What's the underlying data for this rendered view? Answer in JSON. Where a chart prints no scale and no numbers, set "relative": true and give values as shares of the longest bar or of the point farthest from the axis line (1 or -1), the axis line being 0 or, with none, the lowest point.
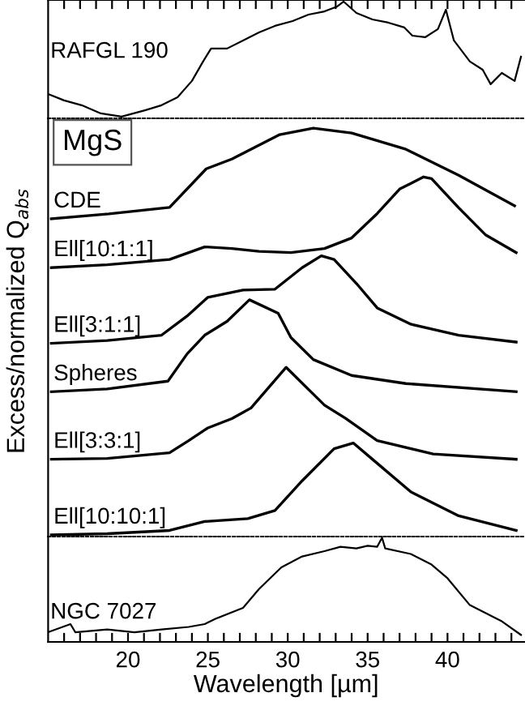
{
  "chart_data": [
    {
      "type": "line",
      "relative": true,
      "xlim": [
        15,
        44.8
      ],
      "xticks": [
        {
          "value": 16,
          "label": null
        },
        {
          "value": 17,
          "label": null
        },
        {
          "value": 18,
          "label": null
        },
        {
          "value": 19,
          "label": null
        },
        {
          "value": 20,
          "label": null
        },
        {
          "value": 21,
          "label": null
        },
        {
          "value": 22,
          "label": null
        },
        {
          "value": 23,
          "label": null
        },
        {
          "value": 24,
          "label": null
        },
        {
          "value": 25,
          "label": null
        },
        {
          "value": 26,
          "label": null
        },
        {
          "value": 27,
          "label": null
        },
        {
          "value": 28,
          "label": null
        },
        {
          "value": 29,
          "label": null
        },
        {
          "value": 30,
          "label": null
        },
        {
          "value": 31,
          "label": null
        },
        {
          "value": 32,
          "label": null
        },
        {
          "value": 33,
          "label": null
        },
        {
          "value": 34,
          "label": null
        },
        {
          "value": 35,
          "label": null
        },
        {
          "value": 36,
          "label": null
        },
        {
          "value": 37,
          "label": null
        },
        {
          "value": 38,
          "label": null
        },
        {
          "value": 39,
          "label": null
        },
        {
          "value": 40,
          "label": null
        },
        {
          "value": 41,
          "label": null
        },
        {
          "value": 42,
          "label": null
        },
        {
          "value": 43,
          "label": null
        },
        {
          "value": 44,
          "label": null
        }
      ],
      "tick_labels": false,
      "legend": false,
      "series": [
        {
          "name": "RAFGL 190",
          "color": "#000000",
          "x": [
            15.0,
            16.0,
            17.1,
            18.3,
            19.6,
            21.1,
            22.1,
            23.1,
            24.0,
            24.7,
            25.2,
            26.2,
            27.2,
            28.2,
            29.2,
            30.3,
            31.3,
            32.3,
            33.1,
            33.5,
            34.3,
            35.3,
            36.3,
            37.3,
            37.8,
            38.6,
            39.4,
            39.9,
            40.4,
            41.4,
            42.2,
            42.7,
            43.4,
            44.2,
            44.6
          ],
          "values": [
            0.197,
            0.141,
            0.099,
            0.028,
            0,
            0.056,
            0.099,
            0.169,
            0.31,
            0.479,
            0.592,
            0.592,
            0.662,
            0.732,
            0.789,
            0.831,
            0.887,
            0.915,
            0.958,
            1.0,
            0.901,
            0.845,
            0.817,
            0.775,
            0.704,
            0.69,
            0.761,
            0.93,
            0.662,
            0.479,
            0.408,
            0.282,
            0.38,
            0.31,
            0.521
          ]
        }
      ]
    },
    {
      "type": "line",
      "relative": true,
      "xlim": [
        15,
        44.8
      ],
      "tick_labels": false,
      "legend": false,
      "ylabel": "Excess/normalized Q$_{abs}$",
      "annotations": [
        "MgS"
      ],
      "series": [
        {
          "name": "CDE",
          "color": "#000000",
          "x": [
            15.2,
            18.8,
            22.6,
            24.9,
            26.5,
            29.5,
            31.6,
            34.0,
            37.4,
            40.7,
            44.2
          ],
          "values": [
            0.777,
            0.789,
            0.805,
            0.9,
            0.924,
            0.984,
            1.0,
            0.988,
            0.948,
            0.884,
            0.809
          ]
        },
        {
          "name": "Ell[10:1:1]",
          "color": "#000000",
          "x": [
            15.2,
            18.7,
            22.6,
            24.8,
            26.5,
            28.2,
            30.2,
            32.3,
            34.0,
            35.6,
            37.0,
            38.5,
            39.0,
            40.7,
            42.4,
            44.3
          ],
          "values": [
            0.657,
            0.664,
            0.677,
            0.708,
            0.704,
            0.697,
            0.694,
            0.704,
            0.73,
            0.79,
            0.85,
            0.88,
            0.876,
            0.804,
            0.737,
            0.694
          ]
        },
        {
          "name": "Ell[3:1:1]",
          "color": "#000000",
          "x": [
            15.2,
            18.7,
            22.1,
            23.7,
            25.0,
            27.2,
            29.2,
            30.9,
            32.1,
            32.9,
            34.3,
            35.6,
            37.7,
            40.7,
            44.3
          ],
          "values": [
            0.471,
            0.478,
            0.491,
            0.538,
            0.584,
            0.602,
            0.604,
            0.657,
            0.686,
            0.677,
            0.618,
            0.558,
            0.518,
            0.491,
            0.474
          ]
        },
        {
          "name": "Spheres",
          "color": "#000000",
          "x": [
            15.2,
            18.7,
            22.5,
            23.7,
            24.8,
            26.2,
            27.6,
            29.4,
            30.2,
            31.6,
            34.0,
            37.4,
            44.3
          ],
          "values": [
            0.352,
            0.359,
            0.378,
            0.445,
            0.491,
            0.525,
            0.578,
            0.545,
            0.485,
            0.431,
            0.392,
            0.372,
            0.352
          ]
        },
        {
          "name": "Ell[3:3:1]",
          "color": "#000000",
          "x": [
            15.2,
            18.7,
            22.6,
            23.8,
            25.0,
            26.5,
            27.7,
            29.9,
            32.3,
            33.6,
            35.6,
            39.1,
            44.3
          ],
          "values": [
            0.186,
            0.188,
            0.202,
            0.232,
            0.263,
            0.286,
            0.312,
            0.412,
            0.319,
            0.287,
            0.232,
            0.199,
            0.186
          ]
        },
        {
          "name": "Ell[10:10:1]",
          "color": "#000000",
          "x": [
            15.2,
            18.7,
            22.6,
            24.8,
            27.5,
            29.2,
            30.9,
            32.9,
            34.1,
            35.3,
            37.7,
            40.7,
            44.3
          ],
          "values": [
            0,
            0.003,
            0.011,
            0.033,
            0.04,
            0.06,
            0.133,
            0.212,
            0.226,
            0.186,
            0.106,
            0.047,
            0.011
          ]
        }
      ]
    },
    {
      "type": "line",
      "relative": true,
      "xlim": [
        15,
        44.8
      ],
      "xticks": [
        {
          "value": 16,
          "label": null
        },
        {
          "value": 17,
          "label": null
        },
        {
          "value": 18,
          "label": null
        },
        {
          "value": 19,
          "label": null
        },
        20,
        {
          "value": 21,
          "label": null
        },
        {
          "value": 22,
          "label": null
        },
        {
          "value": 23,
          "label": null
        },
        {
          "value": 24,
          "label": null
        },
        25,
        {
          "value": 26,
          "label": null
        },
        {
          "value": 27,
          "label": null
        },
        {
          "value": 28,
          "label": null
        },
        {
          "value": 29,
          "label": null
        },
        30,
        {
          "value": 31,
          "label": null
        },
        {
          "value": 32,
          "label": null
        },
        {
          "value": 33,
          "label": null
        },
        {
          "value": 34,
          "label": null
        },
        35,
        {
          "value": 36,
          "label": null
        },
        {
          "value": 37,
          "label": null
        },
        {
          "value": 38,
          "label": null
        },
        {
          "value": 39,
          "label": null
        },
        40,
        {
          "value": 41,
          "label": null
        },
        {
          "value": 42,
          "label": null
        },
        {
          "value": 43,
          "label": null
        },
        {
          "value": 44,
          "label": null
        }
      ],
      "tick_labels": "x",
      "legend": false,
      "xlabel": "Wavelength [µm]",
      "series": [
        {
          "name": "NGC 7027",
          "color": "#000000",
          "x": [
            15.0,
            16.4,
            16.7,
            18.7,
            20.4,
            22.1,
            23.8,
            24.8,
            25.5,
            27.2,
            28.2,
            29.6,
            30.9,
            32.3,
            33.3,
            34.3,
            35.0,
            35.6,
            35.9,
            36.1,
            37.7,
            39.0,
            40.0,
            41.4,
            43.4,
            44.6
          ],
          "values": [
            0.093,
            0.171,
            0.093,
            0.12,
            0.093,
            0.12,
            0.144,
            0.171,
            0.223,
            0.326,
            0.508,
            0.715,
            0.82,
            0.871,
            0.913,
            0.897,
            0.923,
            0.913,
            1.0,
            0.897,
            0.844,
            0.742,
            0.611,
            0.353,
            0.198,
            0.067
          ]
        }
      ]
    }
  ]
}
